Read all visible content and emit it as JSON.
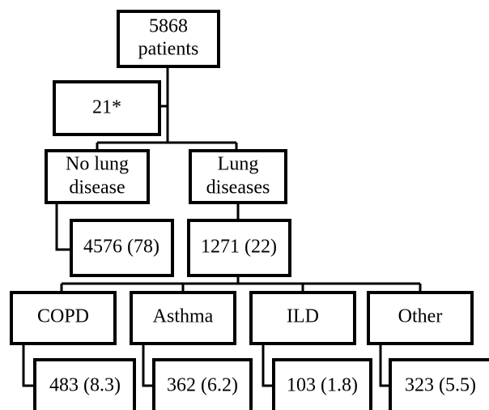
{
  "nodes": [
    {
      "label": [
        "5868",
        "patients"
      ]
    },
    {
      "label": [
        "21*"
      ]
    },
    {
      "label": [
        "No lung",
        "disease"
      ]
    },
    {
      "label": [
        "Lung",
        "diseases"
      ]
    },
    {
      "label": [
        "4576 (78)"
      ]
    },
    {
      "label": [
        "1271 (22)"
      ]
    },
    {
      "label": [
        "COPD"
      ]
    },
    {
      "label": [
        "Asthma"
      ]
    },
    {
      "label": [
        "ILD"
      ]
    },
    {
      "label": [
        "Other"
      ]
    },
    {
      "label": [
        "483 (8.3)"
      ]
    },
    {
      "label": [
        "362 (6.2)"
      ]
    },
    {
      "label": [
        "103 (1.8)"
      ]
    },
    {
      "label": [
        "323 (5.5)"
      ]
    }
  ]
}
